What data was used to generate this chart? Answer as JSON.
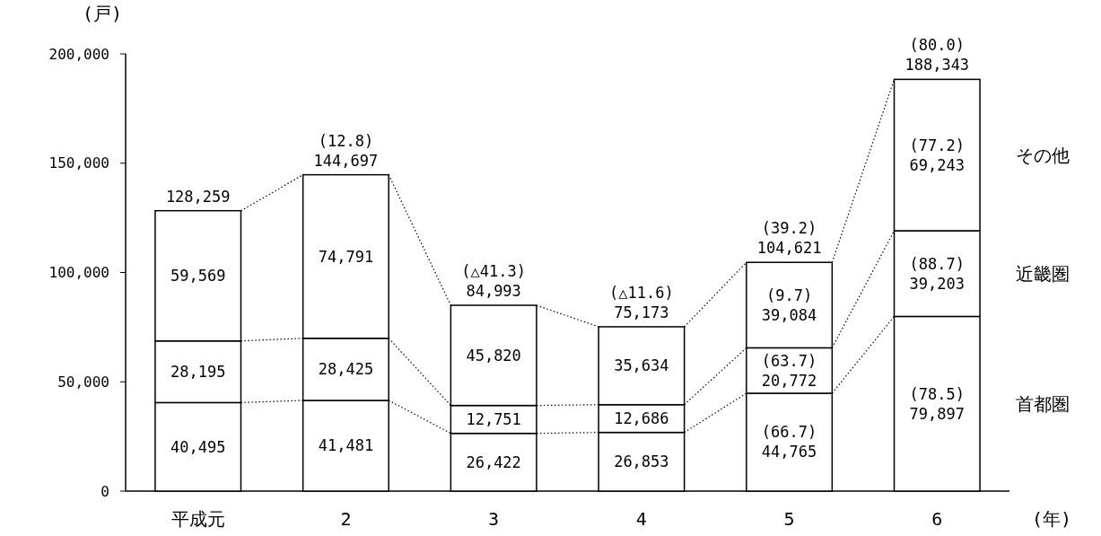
{
  "chart_data": {
    "type": "bar",
    "stacked": true,
    "categories": [
      "平成元",
      "2",
      "3",
      "4",
      "5",
      "6"
    ],
    "series": [
      {
        "name": "首都圏",
        "color": "#ffffff",
        "values": [
          40495,
          41481,
          26422,
          26853,
          44765,
          79897
        ],
        "value_labels": [
          "40,495",
          "41,481",
          "26,422",
          "26,853",
          "(66.7)\n44,765",
          "(78.5)\n79,897"
        ]
      },
      {
        "name": "近畿圏",
        "color": "#ffffff",
        "values": [
          28195,
          28425,
          12751,
          12686,
          20772,
          39203
        ],
        "value_labels": [
          "28,195",
          "28,425",
          "12,751",
          "12,686",
          "(63.7)\n20,772",
          "(88.7)\n39,203"
        ]
      },
      {
        "name": "その他",
        "color": "#ffffff",
        "values": [
          59569,
          74791,
          45820,
          35634,
          39084,
          69243
        ],
        "value_labels": [
          "59,569",
          "74,791",
          "45,820",
          "35,634",
          "(9.7)\n39,084",
          "(77.2)\n69,243"
        ]
      }
    ],
    "totals": [
      "128,259",
      "(12.8)\n144,697",
      "(△41.3)\n84,993",
      "(△11.6)\n75,173",
      "(39.2)\n104,621",
      "(80.0)\n188,343"
    ],
    "ylim": [
      0,
      200000
    ],
    "yticks": [
      {
        "value": 0,
        "label": "0"
      },
      {
        "value": 50000,
        "label": "50,000"
      },
      {
        "value": 100000,
        "label": "100,000"
      },
      {
        "value": 150000,
        "label": "150,000"
      },
      {
        "value": 200000,
        "label": "200,000"
      }
    ],
    "ylabel": "(戸)",
    "xlabel": "(年)",
    "grid": false,
    "legend": "right"
  }
}
